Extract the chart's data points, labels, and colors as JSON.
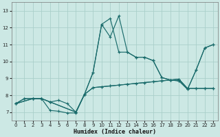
{
  "xlabel": "Humidex (Indice chaleur)",
  "xlim": [
    -0.5,
    23.5
  ],
  "ylim": [
    6.5,
    13.5
  ],
  "xticks": [
    0,
    1,
    2,
    3,
    4,
    5,
    6,
    7,
    8,
    9,
    10,
    11,
    12,
    13,
    14,
    15,
    16,
    17,
    18,
    19,
    20,
    21,
    22,
    23
  ],
  "yticks": [
    7,
    8,
    9,
    10,
    11,
    12,
    13
  ],
  "background_color": "#cce8e4",
  "grid_color": "#aacfca",
  "line_color": "#1a6b6b",
  "lines": [
    {
      "x": [
        0,
        1,
        2,
        3,
        4,
        5,
        6,
        7,
        8,
        9,
        10,
        11,
        12,
        13,
        14,
        15,
        16,
        17,
        18,
        19,
        20,
        21,
        22,
        23
      ],
      "y": [
        7.5,
        7.8,
        7.8,
        7.8,
        7.6,
        7.7,
        7.5,
        7.0,
        8.05,
        8.45,
        8.5,
        8.55,
        8.6,
        8.65,
        8.7,
        8.75,
        8.8,
        8.85,
        8.9,
        8.95,
        8.4,
        8.4,
        8.4,
        8.4
      ]
    },
    {
      "x": [
        0,
        1,
        2,
        3,
        4,
        5,
        6,
        7,
        8,
        9,
        10,
        11,
        12,
        13,
        14,
        15,
        16,
        17,
        18,
        19,
        20,
        21,
        22,
        23
      ],
      "y": [
        7.5,
        7.8,
        7.8,
        7.8,
        7.1,
        7.05,
        6.95,
        6.95,
        8.05,
        8.45,
        8.5,
        8.55,
        8.6,
        8.65,
        8.7,
        8.75,
        8.8,
        8.85,
        8.9,
        8.95,
        8.4,
        8.4,
        8.4,
        8.4
      ]
    },
    {
      "x": [
        0,
        2,
        3,
        4,
        7,
        8,
        9,
        10,
        11,
        12,
        13,
        14,
        15,
        16,
        17,
        18,
        19,
        20,
        21,
        22,
        23
      ],
      "y": [
        7.5,
        7.8,
        7.8,
        7.6,
        7.0,
        8.05,
        9.35,
        12.2,
        12.55,
        10.55,
        10.55,
        10.25,
        10.25,
        10.05,
        9.05,
        8.9,
        8.85,
        8.35,
        9.5,
        10.8,
        11.0
      ]
    },
    {
      "x": [
        0,
        2,
        3,
        4,
        7,
        8,
        9,
        10,
        11,
        12,
        13,
        14,
        15,
        16,
        17,
        18,
        19,
        20,
        21,
        22,
        23
      ],
      "y": [
        7.5,
        7.8,
        7.8,
        7.6,
        7.0,
        8.05,
        9.35,
        12.2,
        11.45,
        12.7,
        10.55,
        10.25,
        10.25,
        10.05,
        9.05,
        8.9,
        8.85,
        8.35,
        9.5,
        10.8,
        11.0
      ]
    }
  ]
}
